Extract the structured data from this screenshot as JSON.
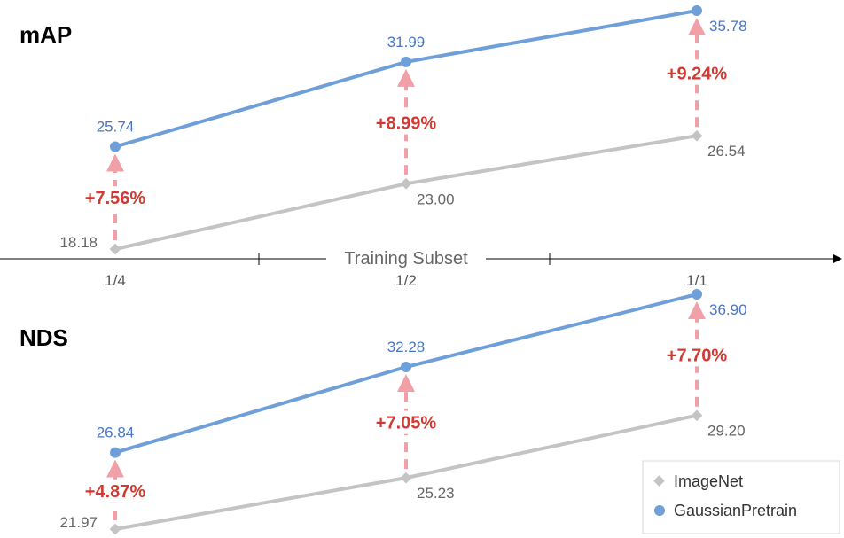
{
  "chart_data": {
    "type": "line",
    "xlabel": "Training Subset",
    "categories": [
      "1/4",
      "1/2",
      "1/1"
    ],
    "legend": {
      "placement": "bottom-right",
      "entries": [
        {
          "name": "ImageNet",
          "marker": "diamond",
          "color": "#c4c4c4"
        },
        {
          "name": "GaussianPretrain",
          "marker": "circle",
          "color": "#6f9fd8"
        }
      ]
    },
    "colors": {
      "baseline": "#c4c4c4",
      "pretrain": "#6f9fd8",
      "pretrain_label": "#4a76c4",
      "gain_arrow": "#f0a0a6",
      "gain_label": "#d03a32"
    },
    "panels": [
      {
        "title": "mAP",
        "series": [
          {
            "name": "ImageNet",
            "values": [
              18.18,
              23.0,
              26.54
            ],
            "labels": [
              "18.18",
              "23.00",
              "26.54"
            ]
          },
          {
            "name": "GaussianPretrain",
            "values": [
              25.74,
              31.99,
              35.78
            ],
            "labels": [
              "25.74",
              "31.99",
              "35.78"
            ]
          }
        ],
        "gains": [
          "+7.56%",
          "+8.99%",
          "+9.24%"
        ]
      },
      {
        "title": "NDS",
        "series": [
          {
            "name": "ImageNet",
            "values": [
              21.97,
              25.23,
              29.2
            ],
            "labels": [
              "21.97",
              "25.23",
              "29.20"
            ]
          },
          {
            "name": "GaussianPretrain",
            "values": [
              26.84,
              32.28,
              36.9
            ],
            "labels": [
              "26.84",
              "32.28",
              "36.90"
            ]
          }
        ],
        "gains": [
          "+4.87%",
          "+7.05%",
          "+7.70%"
        ]
      }
    ]
  }
}
